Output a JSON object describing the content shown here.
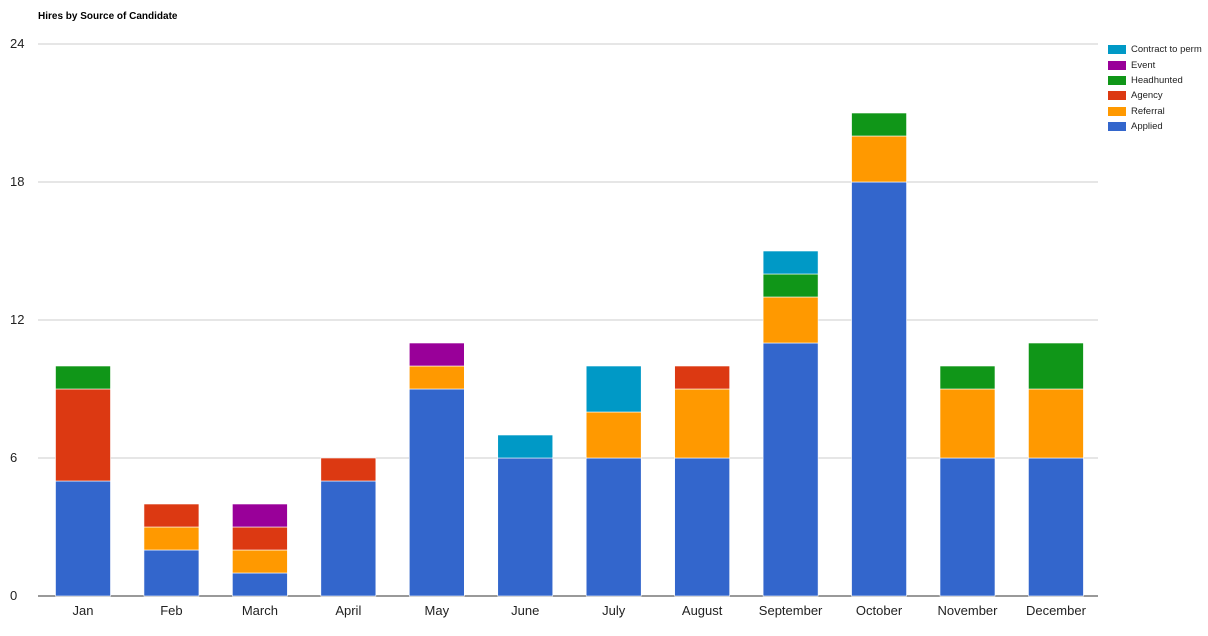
{
  "chart_data": {
    "type": "bar",
    "stacked": true,
    "title": "Hires by Source of Candidate",
    "xlabel": "",
    "ylabel": "",
    "ylim": [
      0,
      24
    ],
    "yticks": [
      0,
      6,
      12,
      18,
      24
    ],
    "grid": true,
    "legend_position": "right-top",
    "categories": [
      "Jan",
      "Feb",
      "March",
      "April",
      "May",
      "June",
      "July",
      "August",
      "September",
      "October",
      "November",
      "December"
    ],
    "series": [
      {
        "name": "Applied",
        "color": "#3366cc",
        "values": [
          5,
          2,
          1,
          5,
          9,
          6,
          6,
          6,
          11,
          18,
          6,
          6
        ]
      },
      {
        "name": "Referral",
        "color": "#ff9900",
        "values": [
          0,
          1,
          1,
          0,
          1,
          0,
          2,
          3,
          2,
          2,
          3,
          3
        ]
      },
      {
        "name": "Agency",
        "color": "#dc3912",
        "values": [
          4,
          1,
          1,
          1,
          0,
          0,
          0,
          1,
          0,
          0,
          0,
          0
        ]
      },
      {
        "name": "Headhunted",
        "color": "#109618",
        "values": [
          1,
          0,
          0,
          0,
          0,
          0,
          0,
          0,
          1,
          1,
          1,
          2
        ]
      },
      {
        "name": "Event",
        "color": "#990099",
        "values": [
          0,
          0,
          1,
          0,
          1,
          0,
          0,
          0,
          0,
          0,
          0,
          0
        ]
      },
      {
        "name": "Contract to perm",
        "color": "#0099c6",
        "values": [
          0,
          0,
          0,
          0,
          0,
          1,
          2,
          0,
          1,
          0,
          0,
          0
        ]
      }
    ]
  }
}
